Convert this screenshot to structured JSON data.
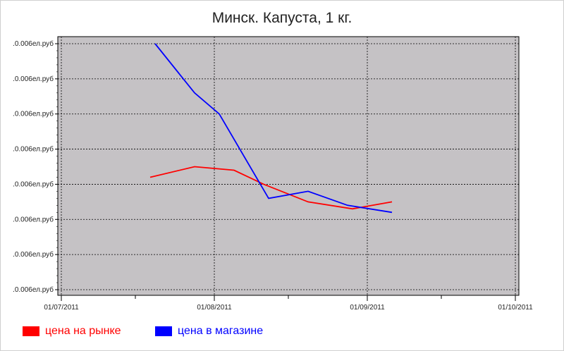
{
  "chart_data": {
    "type": "line",
    "title": "Минск. Капуста, 1 кг.",
    "xlabel": "",
    "ylabel": "",
    "x_ticks": [
      "01/07/2011",
      "01/08/2011",
      "01/09/2011",
      "01/10/2011"
    ],
    "y_ticks": [
      ".0.006ел.руб",
      ".0.006ел.руб",
      ".0.006ел.руб",
      ".0.006ел.руб",
      ".0.006ел.руб",
      ".0.006ел.руб",
      ".0.006ел.руб",
      ".0.006ел.руб"
    ],
    "xlim": [
      "2011-07-01",
      "2011-10-01"
    ],
    "ylim": [
      0,
      7
    ],
    "grid": true,
    "legend_position": "bottom",
    "series": [
      {
        "name": "цена на рынке",
        "color": "#ff0000",
        "points": [
          {
            "x": "2011-07-19",
            "y": 3.2
          },
          {
            "x": "2011-07-28",
            "y": 3.5
          },
          {
            "x": "2011-08-05",
            "y": 3.4
          },
          {
            "x": "2011-08-11",
            "y": 3.0
          },
          {
            "x": "2011-08-20",
            "y": 2.5
          },
          {
            "x": "2011-08-29",
            "y": 2.3
          },
          {
            "x": "2011-09-06",
            "y": 2.5
          }
        ]
      },
      {
        "name": "цена в магазине",
        "color": "#0000ff",
        "points": [
          {
            "x": "2011-07-20",
            "y": 7.0
          },
          {
            "x": "2011-07-28",
            "y": 5.6
          },
          {
            "x": "2011-08-02",
            "y": 5.0
          },
          {
            "x": "2011-08-12",
            "y": 2.6
          },
          {
            "x": "2011-08-20",
            "y": 2.8
          },
          {
            "x": "2011-08-28",
            "y": 2.4
          },
          {
            "x": "2011-09-06",
            "y": 2.2
          }
        ]
      }
    ]
  }
}
